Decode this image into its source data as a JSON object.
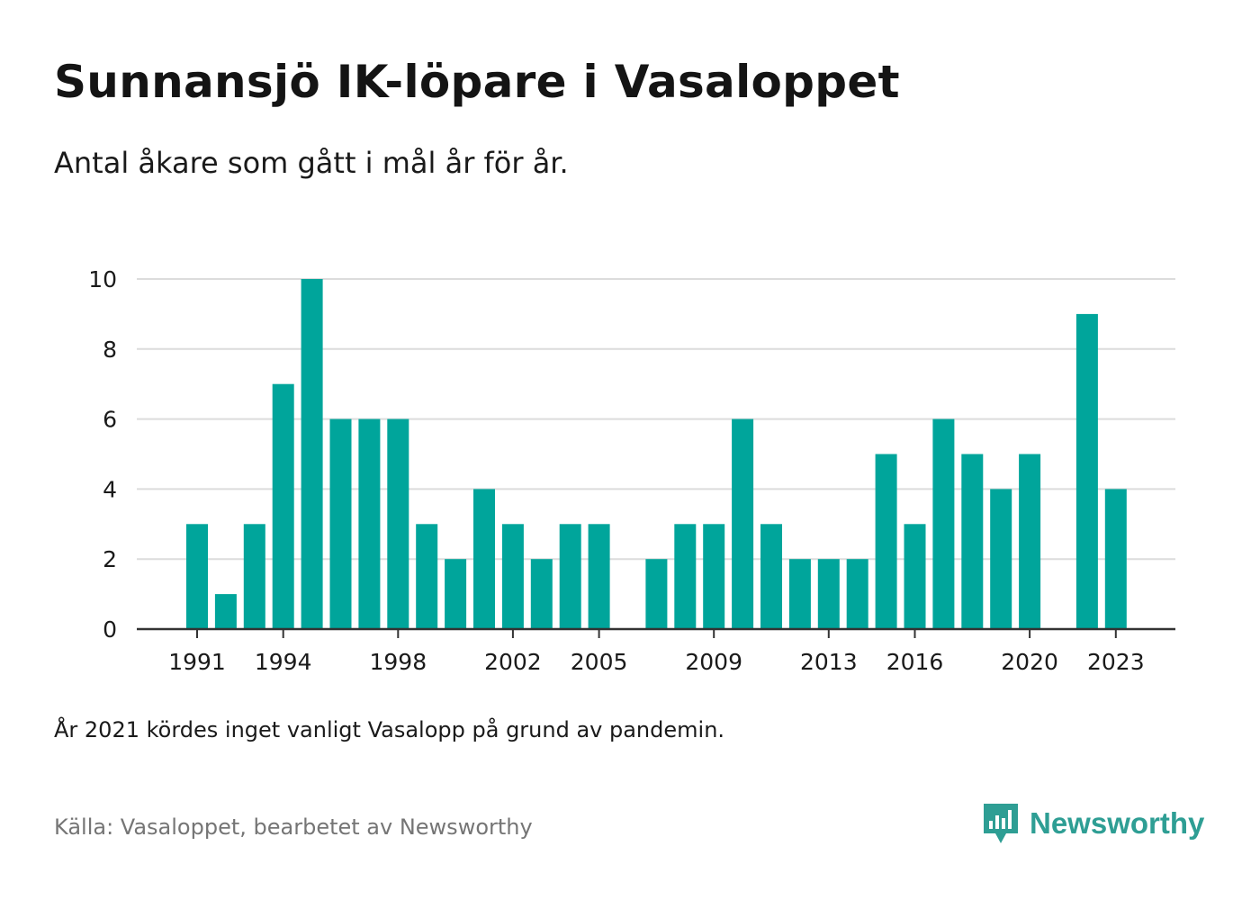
{
  "title": "Sunnansjö IK-löpare i Vasaloppet",
  "subtitle": "Antal åkare som gått i mål år för år.",
  "note": "År 2021 kördes inget vanligt Vasalopp på grund av pandemin.",
  "source": "Källa: Vasaloppet, bearbetet av Newsworthy",
  "brand": {
    "name": "Newsworthy",
    "icon": "newsworthy-logo-icon"
  },
  "colors": {
    "bar": "#00a59b",
    "grid": "#dcdcdc",
    "axis": "#333333",
    "brand": "#2e9e94"
  },
  "chart_data": {
    "type": "bar",
    "title": "",
    "xlabel": "",
    "ylabel": "",
    "ylim": [
      0,
      10
    ],
    "yticks": [
      0,
      2,
      4,
      6,
      8,
      10
    ],
    "grid": true,
    "categories": [
      1991,
      1992,
      1993,
      1994,
      1995,
      1996,
      1997,
      1998,
      1999,
      2000,
      2001,
      2002,
      2003,
      2004,
      2005,
      2006,
      2007,
      2008,
      2009,
      2010,
      2011,
      2012,
      2013,
      2014,
      2015,
      2016,
      2017,
      2018,
      2019,
      2020,
      2021,
      2022,
      2023
    ],
    "values": [
      3,
      1,
      3,
      7,
      10,
      6,
      6,
      6,
      3,
      2,
      4,
      3,
      2,
      3,
      3,
      0,
      2,
      3,
      3,
      6,
      3,
      2,
      2,
      2,
      5,
      3,
      6,
      5,
      4,
      5,
      0,
      9,
      4
    ],
    "xticks": [
      1991,
      1994,
      1998,
      2002,
      2005,
      2009,
      2013,
      2016,
      2020,
      2023
    ]
  }
}
